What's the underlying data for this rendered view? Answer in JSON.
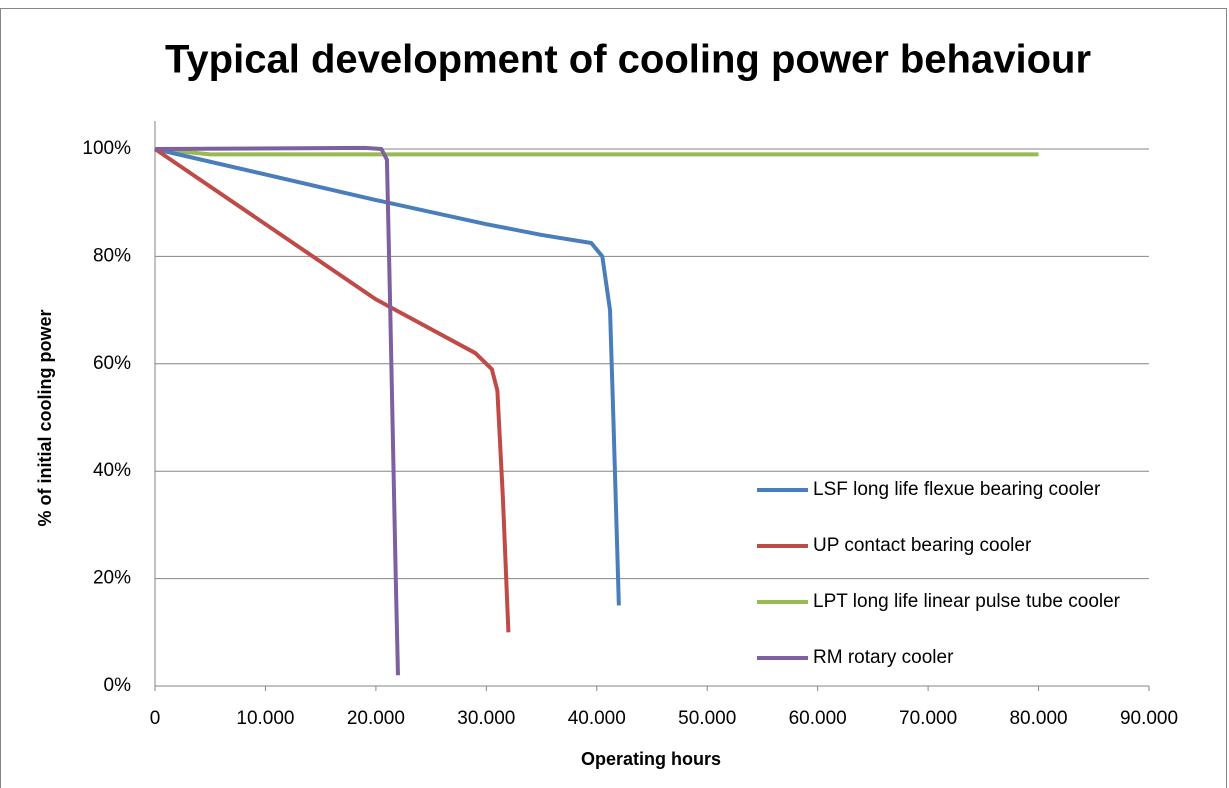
{
  "chart_data": {
    "type": "line",
    "title": "Typical development of cooling power behaviour",
    "x_label": "Operating hours",
    "y_label": "% of initial cooling power",
    "xlim": [
      0,
      90000
    ],
    "xticks": [
      0,
      {
        "value": 10000,
        "label": "10.000"
      },
      {
        "value": 20000,
        "label": "20.000"
      },
      {
        "value": 30000,
        "label": "30.000"
      },
      {
        "value": 40000,
        "label": "40.000"
      },
      {
        "value": 50000,
        "label": "50.000"
      },
      {
        "value": 60000,
        "label": "60.000"
      },
      {
        "value": 70000,
        "label": "70.000"
      },
      {
        "value": 80000,
        "label": "80.000"
      },
      {
        "value": 90000,
        "label": "90.000"
      }
    ],
    "ylim": [
      0,
      100
    ],
    "yticks": [
      {
        "value": 0,
        "label": "0%"
      },
      {
        "value": 20,
        "label": "20%"
      },
      {
        "value": 40,
        "label": "40%"
      },
      {
        "value": 60,
        "label": "60%"
      },
      {
        "value": 80,
        "label": "80%"
      },
      {
        "value": 100,
        "label": "100%"
      }
    ],
    "grid": true,
    "legend": "right",
    "series": [
      {
        "name": "LSF long life flexue bearing cooler",
        "color": "#4a7ebb",
        "x": [
          0,
          20000,
          30000,
          35000,
          39500,
          40500,
          41200,
          41500,
          42000
        ],
        "values": [
          100,
          90.5,
          86,
          84,
          82.5,
          80,
          70,
          50,
          15
        ]
      },
      {
        "name": "UP contact bearing cooler",
        "color": "#be4b48",
        "x": [
          0,
          20000,
          29000,
          30500,
          31000,
          31500,
          32000
        ],
        "values": [
          100,
          72,
          62,
          59,
          55,
          35,
          10
        ]
      },
      {
        "name": "LPT long life linear pulse tube cooler",
        "color": "#98b954",
        "x": [
          0,
          5000,
          80000
        ],
        "values": [
          100,
          99,
          99
        ]
      },
      {
        "name": "RM rotary cooler",
        "color": "#7d60a0",
        "x": [
          0,
          19000,
          20500,
          21000,
          21300,
          21800,
          22000
        ],
        "values": [
          100,
          100.2,
          100,
          98,
          70,
          20,
          2
        ]
      }
    ]
  }
}
